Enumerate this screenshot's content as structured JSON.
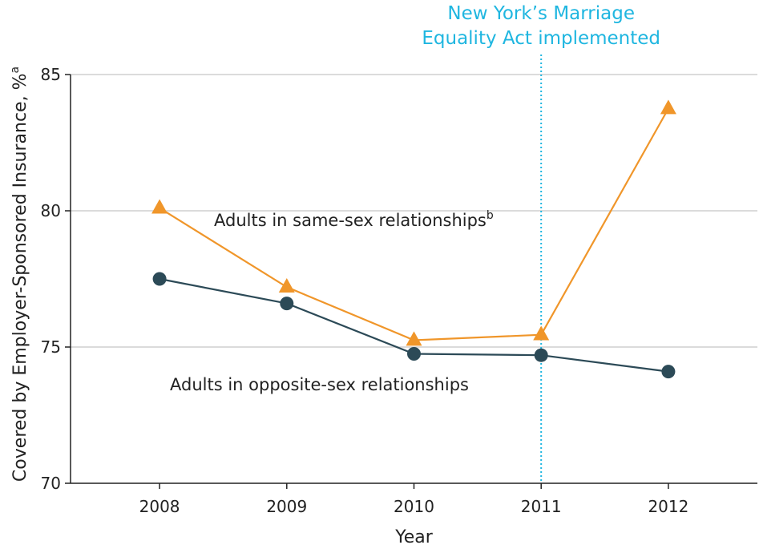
{
  "chart_data": {
    "type": "line",
    "x": [
      2008,
      2009,
      2010,
      2011,
      2012
    ],
    "xlim": [
      2007.3,
      2012.7
    ],
    "ylim": [
      70,
      85
    ],
    "y_ticks": [
      70,
      75,
      80,
      85
    ],
    "xlabel": "Year",
    "ylabel": "Covered by Employer-Sponsored Insurance, %",
    "ylabel_sup": "a",
    "grid": "horizontal",
    "series": [
      {
        "name": "Adults in same-sex relationships",
        "name_sup": "b",
        "marker": "triangle",
        "color": "#f0962a",
        "values": [
          80.1,
          77.2,
          75.25,
          75.45,
          83.75
        ]
      },
      {
        "name": "Adults in opposite-sex relationships",
        "name_sup": "",
        "marker": "circle",
        "color": "#2c4a57",
        "values": [
          77.5,
          76.6,
          74.75,
          74.7,
          74.1
        ]
      }
    ],
    "annotation": {
      "x": 2011,
      "line1": "New York’s Marriage",
      "line2": "Equality Act implemented",
      "color": "#1fb6e0"
    }
  }
}
